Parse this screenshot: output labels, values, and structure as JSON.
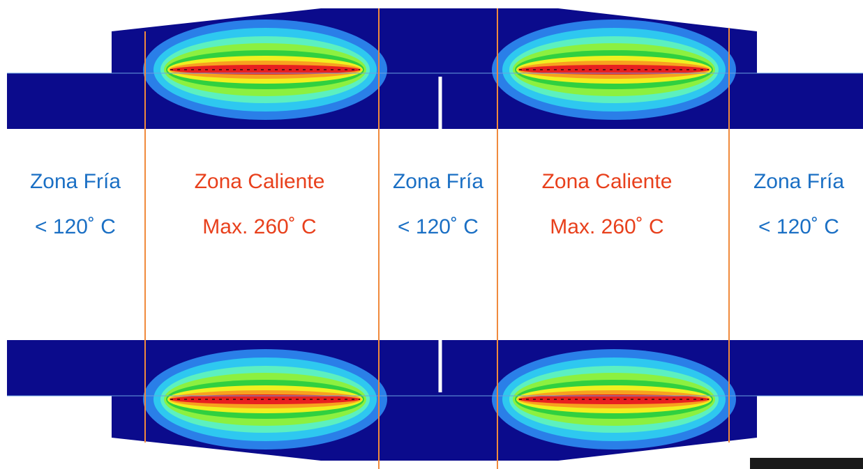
{
  "zones": [
    {
      "name": "Zona Fría",
      "temp": "< 120˚ C"
    },
    {
      "name": "Zona Caliente",
      "temp": "Max. 260˚ C"
    },
    {
      "name": "Zona Fría",
      "temp": "< 120˚ C"
    },
    {
      "name": "Zona Caliente",
      "temp": "Max. 260˚ C"
    },
    {
      "name": "Zona Fría",
      "temp": "< 120˚ C"
    }
  ]
}
